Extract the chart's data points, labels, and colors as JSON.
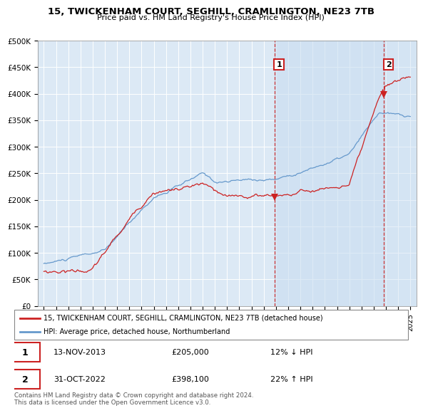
{
  "title": "15, TWICKENHAM COURT, SEGHILL, CRAMLINGTON, NE23 7TB",
  "subtitle": "Price paid vs. HM Land Registry's House Price Index (HPI)",
  "sale1": {
    "date": "2013-11-13",
    "price": 205000,
    "label": "1",
    "pct": "12% ↓ HPI",
    "date_str": "13-NOV-2013"
  },
  "sale2": {
    "date": "2022-10-31",
    "price": 398100,
    "label": "2",
    "pct": "22% ↑ HPI",
    "date_str": "31-OCT-2022"
  },
  "legend_line1": "15, TWICKENHAM COURT, SEGHILL, CRAMLINGTON, NE23 7TB (detached house)",
  "legend_line2": "HPI: Average price, detached house, Northumberland",
  "footer": "Contains HM Land Registry data © Crown copyright and database right 2024.\nThis data is licensed under the Open Government Licence v3.0.",
  "hpi_color": "#6699cc",
  "price_color": "#cc2222",
  "background_color": "#dce9f5",
  "plot_bg_color": "#dce9f5",
  "ylim": [
    0,
    500000
  ],
  "yticks": [
    0,
    50000,
    100000,
    150000,
    200000,
    250000,
    300000,
    350000,
    400000,
    450000,
    500000
  ],
  "xstart": 1995,
  "xend": 2025,
  "sale1_x": 2013.87,
  "sale2_x": 2022.83
}
